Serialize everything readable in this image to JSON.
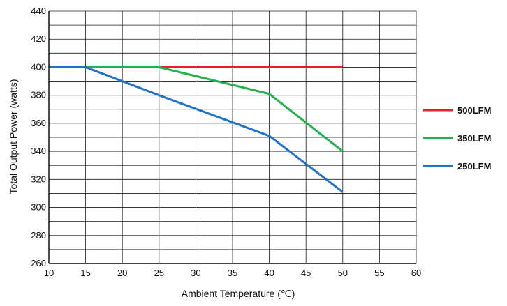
{
  "chart_data": {
    "type": "line",
    "title": "",
    "xlabel": "Ambient Temperature (℃)",
    "ylabel": "Total Output Power  (watts)",
    "xlim": [
      10,
      60
    ],
    "ylim": [
      260,
      440
    ],
    "x_ticks": [
      10,
      15,
      20,
      25,
      30,
      35,
      40,
      45,
      50,
      55,
      60
    ],
    "y_ticks": [
      260,
      280,
      300,
      320,
      340,
      360,
      380,
      400,
      420,
      440
    ],
    "grid": true,
    "legend_position": "right",
    "series": [
      {
        "name": "500LFM",
        "color": "#ee1c24",
        "x": [
          10,
          15,
          25,
          40,
          50
        ],
        "y": [
          400,
          400,
          400,
          400,
          400
        ]
      },
      {
        "name": "350LFM",
        "color": "#22b14c",
        "x": [
          10,
          15,
          25,
          40,
          50
        ],
        "y": [
          400,
          400,
          400,
          381,
          340
        ]
      },
      {
        "name": "250LFM",
        "color": "#1f74c9",
        "x": [
          10,
          15,
          25,
          40,
          50
        ],
        "y": [
          400,
          400,
          380,
          351,
          311
        ]
      }
    ]
  }
}
